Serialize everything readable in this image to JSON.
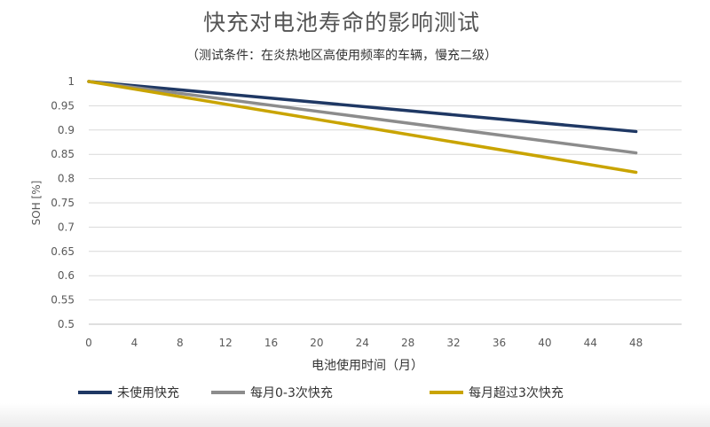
{
  "chart_data": {
    "type": "line",
    "title": "快充对电池寿命的影响测试",
    "subtitle": "（测试条件：在炎热地区高使用频率的车辆，慢充二级）",
    "xlabel": "电池使用时间（月）",
    "ylabel": "SOH [%]",
    "x_ticks": [
      "0",
      "4",
      "8",
      "12",
      "16",
      "20",
      "24",
      "28",
      "32",
      "36",
      "40",
      "44",
      "48"
    ],
    "y_ticks": [
      "0.5",
      "0.55",
      "0.6",
      "0.65",
      "0.7",
      "0.75",
      "0.8",
      "0.85",
      "0.9",
      "0.95",
      "1"
    ],
    "xlim": [
      0,
      52
    ],
    "ylim": [
      0.5,
      1.0
    ],
    "grid": "horizontal",
    "legend_position": "bottom",
    "series": [
      {
        "name": "未使用快充",
        "color": "#1f3864",
        "x": [
          0,
          48
        ],
        "y": [
          1.0,
          0.897
        ]
      },
      {
        "name": "每月0-3次快充",
        "color": "#8c8c8c",
        "x": [
          0,
          48
        ],
        "y": [
          1.0,
          0.853
        ]
      },
      {
        "name": "每月超过3次快充",
        "color": "#c9a400",
        "x": [
          0,
          48
        ],
        "y": [
          1.0,
          0.813
        ]
      }
    ]
  }
}
